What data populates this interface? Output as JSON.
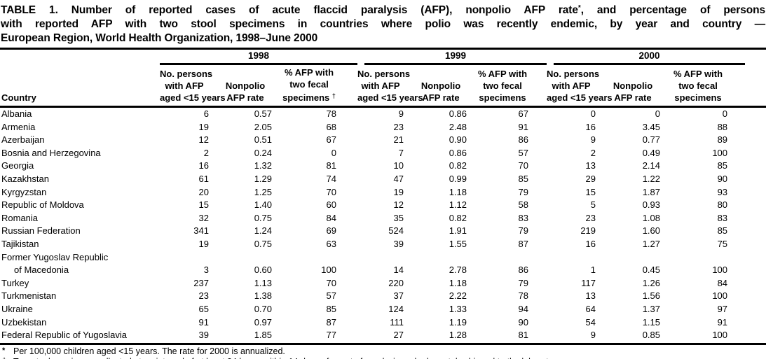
{
  "title": {
    "line1_pre": "TABLE 1. Number of reported cases of acute flaccid paralysis (AFP), nonpolio AFP rate",
    "line1_sup": "*",
    "line1_post": ", and percentage of persons",
    "line2": "with reported AFP with two stool specimens in countries where polio was recently endemic, by year and country —",
    "line3": "European Region, World Health Organization, 1998–June 2000"
  },
  "table": {
    "country_header": "Country",
    "year_groups": [
      {
        "year": "1998",
        "persons": [
          "No. persons",
          "with AFP",
          "aged <15 years"
        ],
        "rate": [
          "Nonpolio",
          "AFP rate"
        ],
        "specimens": [
          "% AFP with",
          "two fecal",
          "specimens"
        ],
        "specimens_sup": "†"
      },
      {
        "year": "1999",
        "persons": [
          "No. persons",
          "with AFP",
          "aged <15 years"
        ],
        "rate": [
          "Nonpolio",
          "AFP rate"
        ],
        "specimens": [
          "% AFP with",
          "two fecal",
          "specimens"
        ],
        "specimens_sup": ""
      },
      {
        "year": "2000",
        "persons": [
          "No. persons",
          "with AFP",
          "aged <15 years"
        ],
        "rate": [
          "Nonpolio",
          "AFP rate"
        ],
        "specimens": [
          "% AFP with",
          "two fecal",
          "specimens"
        ],
        "specimens_sup": ""
      }
    ],
    "rows": [
      {
        "country": [
          "Albania"
        ],
        "values": [
          "6",
          "0.57",
          "78",
          "9",
          "0.86",
          "67",
          "0",
          "0",
          "0"
        ]
      },
      {
        "country": [
          "Armenia"
        ],
        "values": [
          "19",
          "2.05",
          "68",
          "23",
          "2.48",
          "91",
          "16",
          "3.45",
          "88"
        ]
      },
      {
        "country": [
          "Azerbaijan"
        ],
        "values": [
          "12",
          "0.51",
          "67",
          "21",
          "0.90",
          "86",
          "9",
          "0.77",
          "89"
        ]
      },
      {
        "country": [
          "Bosnia and Herzegovina"
        ],
        "values": [
          "2",
          "0.24",
          "0",
          "7",
          "0.86",
          "57",
          "2",
          "0.49",
          "100"
        ]
      },
      {
        "country": [
          "Georgia"
        ],
        "values": [
          "16",
          "1.32",
          "81",
          "10",
          "0.82",
          "70",
          "13",
          "2.14",
          "85"
        ]
      },
      {
        "country": [
          "Kazakhstan"
        ],
        "values": [
          "61",
          "1.29",
          "74",
          "47",
          "0.99",
          "85",
          "29",
          "1.22",
          "90"
        ]
      },
      {
        "country": [
          "Kyrgyzstan"
        ],
        "values": [
          "20",
          "1.25",
          "70",
          "19",
          "1.18",
          "79",
          "15",
          "1.87",
          "93"
        ]
      },
      {
        "country": [
          "Republic of Moldova"
        ],
        "values": [
          "15",
          "1.40",
          "60",
          "12",
          "1.12",
          "58",
          "5",
          "0.93",
          "80"
        ]
      },
      {
        "country": [
          "Romania"
        ],
        "values": [
          "32",
          "0.75",
          "84",
          "35",
          "0.82",
          "83",
          "23",
          "1.08",
          "83"
        ]
      },
      {
        "country": [
          "Russian Federation"
        ],
        "values": [
          "341",
          "1.24",
          "69",
          "524",
          "1.91",
          "79",
          "219",
          "1.60",
          "85"
        ]
      },
      {
        "country": [
          "Tajikistan"
        ],
        "values": [
          "19",
          "0.75",
          "63",
          "39",
          "1.55",
          "87",
          "16",
          "1.27",
          "75"
        ]
      },
      {
        "country": [
          "Former Yugoslav Republic",
          "of Macedonia"
        ],
        "values": [
          "3",
          "0.60",
          "100",
          "14",
          "2.78",
          "86",
          "1",
          "0.45",
          "100"
        ]
      },
      {
        "country": [
          "Turkey"
        ],
        "values": [
          "237",
          "1.13",
          "70",
          "220",
          "1.18",
          "79",
          "117",
          "1.26",
          "84"
        ]
      },
      {
        "country": [
          "Turkmenistan"
        ],
        "values": [
          "23",
          "1.38",
          "57",
          "37",
          "2.22",
          "78",
          "13",
          "1.56",
          "100"
        ]
      },
      {
        "country": [
          "Ukraine"
        ],
        "values": [
          "65",
          "0.70",
          "85",
          "124",
          "1.33",
          "94",
          "64",
          "1.37",
          "97"
        ]
      },
      {
        "country": [
          "Uzbekistan"
        ],
        "values": [
          "91",
          "0.97",
          "87",
          "111",
          "1.19",
          "90",
          "54",
          "1.15",
          "91"
        ]
      },
      {
        "country": [
          "Federal Republic of Yugoslavia"
        ],
        "values": [
          "39",
          "1.85",
          "77",
          "27",
          "1.28",
          "81",
          "9",
          "0.85",
          "100"
        ]
      }
    ]
  },
  "footnotes": [
    {
      "marker": "*",
      "text": "Per 100,000 children aged <15 years. The rate for 2000 is annualized."
    },
    {
      "marker": "†",
      "text": "Two stool specimens collected at an interval of at least 24 hours within 14 days of onset of paralysis and adequately shipped to the laboratory."
    }
  ]
}
